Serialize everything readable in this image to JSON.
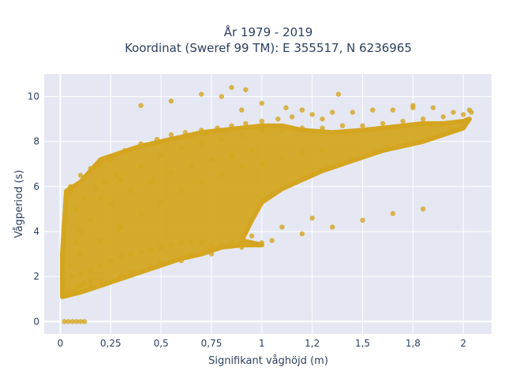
{
  "chart_data": {
    "type": "scatter",
    "title_lines": [
      "År 1979 - 2019",
      "Koordinat (Sweref 99 TM): E 355517, N 6236965"
    ],
    "xlabel": "Signifikant våghöjd (m)",
    "ylabel": "Vågperiod (s)",
    "xlim": [
      -0.08,
      2.14
    ],
    "ylim": [
      -0.55,
      11
    ],
    "xticks": [
      0,
      0.25,
      0.5,
      0.75,
      1,
      1.25,
      1.5,
      1.75,
      2
    ],
    "xtick_labels": [
      "0",
      "0,25",
      "0,5",
      "0,75",
      "1",
      "1,2",
      "1,5",
      "1,8",
      "2"
    ],
    "yticks": [
      0,
      2,
      4,
      6,
      8,
      10
    ],
    "ytick_labels": [
      "0",
      "2",
      "4",
      "6",
      "8",
      "10"
    ],
    "grid": true,
    "marker_color": "#d4a520",
    "background_color": "#e5e8f2",
    "series": [
      {
        "x": [
          0.02,
          0.04,
          0.06,
          0.08,
          0.1,
          0.12,
          0.02,
          0.03,
          0.05,
          0.08,
          0.1,
          0.12,
          0.15,
          0.06,
          0.1,
          0.15,
          0.2,
          0.25,
          0.3,
          0.35,
          0.4,
          0.45,
          0.5,
          0.55,
          0.6,
          0.65,
          0.7,
          0.75,
          0.8,
          0.85,
          0.9,
          0.95,
          1.0,
          0.1,
          0.2,
          0.3,
          0.4,
          0.5,
          0.6,
          0.7,
          0.8,
          0.9,
          1.0,
          1.1,
          1.2,
          1.3,
          0.05,
          0.1,
          0.2,
          0.3,
          0.4,
          0.5,
          0.6,
          0.7,
          0.8,
          0.9,
          1.0,
          1.1,
          1.2,
          1.3,
          1.4,
          1.5,
          1.6,
          1.7,
          1.8,
          1.9,
          2.0,
          2.04,
          0.05,
          0.12,
          0.18,
          0.25,
          0.32,
          0.4,
          0.48,
          0.55,
          0.62,
          0.7,
          0.78,
          0.85,
          0.92,
          1.0,
          1.08,
          1.15,
          1.25,
          1.35,
          1.45,
          1.55,
          1.65,
          1.75,
          1.85,
          1.95,
          0.08,
          0.15,
          0.25,
          0.35,
          0.45,
          0.55,
          0.65,
          0.75,
          0.85,
          0.95,
          0.4,
          0.55,
          0.7,
          0.85,
          1.0,
          0.8,
          0.9,
          0.92,
          1.12,
          1.2,
          1.3,
          1.38,
          1.75,
          2.03,
          0.3,
          0.45,
          0.6,
          0.75,
          0.9,
          1.05,
          1.2,
          1.35,
          1.5,
          1.65,
          1.8,
          0.2,
          0.35,
          0.5,
          0.65,
          0.8,
          0.95,
          1.1,
          1.25,
          0.15,
          0.3,
          0.45,
          0.6,
          0.75,
          0.9,
          0.05,
          0.1,
          0.15,
          0.2,
          0.25,
          0.08,
          0.12,
          0.18,
          0.22,
          0.28
        ],
        "y": [
          0,
          0,
          0,
          0,
          0,
          0,
          1.2,
          1.3,
          1.4,
          1.5,
          1.6,
          1.7,
          1.8,
          2.0,
          2.1,
          2.3,
          2.5,
          2.7,
          2.9,
          3.0,
          3.1,
          3.2,
          3.3,
          3.4,
          3.5,
          3.5,
          3.5,
          3.4,
          3.4,
          3.5,
          3.5,
          3.4,
          3.5,
          3.0,
          3.6,
          4.2,
          4.8,
          5.3,
          5.8,
          6.2,
          6.5,
          6.9,
          7.0,
          7.3,
          7.5,
          7.6,
          2.5,
          4.0,
          5.5,
          6.3,
          6.9,
          7.4,
          7.7,
          7.9,
          8.1,
          8.3,
          8.5,
          8.5,
          8.6,
          8.6,
          8.7,
          8.7,
          8.8,
          8.9,
          9.0,
          9.1,
          9.2,
          9.3,
          5.8,
          6.4,
          6.9,
          7.3,
          7.6,
          7.9,
          8.1,
          8.3,
          8.4,
          8.5,
          8.6,
          8.7,
          8.8,
          8.9,
          9.0,
          9.1,
          9.2,
          9.3,
          9.3,
          9.4,
          9.4,
          9.5,
          9.5,
          9.3,
          3.5,
          4.5,
          5.2,
          5.8,
          6.2,
          6.6,
          6.9,
          7.2,
          7.4,
          7.6,
          9.6,
          9.8,
          10.1,
          10.4,
          9.7,
          10.0,
          9.4,
          10.3,
          9.5,
          9.4,
          9.0,
          10.1,
          9.6,
          9.4,
          2.0,
          2.4,
          2.7,
          3.0,
          3.3,
          3.6,
          3.9,
          4.2,
          4.5,
          4.8,
          5.0,
          1.8,
          2.2,
          2.6,
          3.0,
          3.4,
          3.8,
          4.2,
          4.6,
          1.6,
          2.0,
          2.4,
          2.8,
          3.2,
          3.6,
          6.0,
          6.5,
          6.8,
          7.0,
          7.2,
          5.0,
          5.5,
          5.9,
          6.2,
          6.5
        ]
      }
    ]
  }
}
